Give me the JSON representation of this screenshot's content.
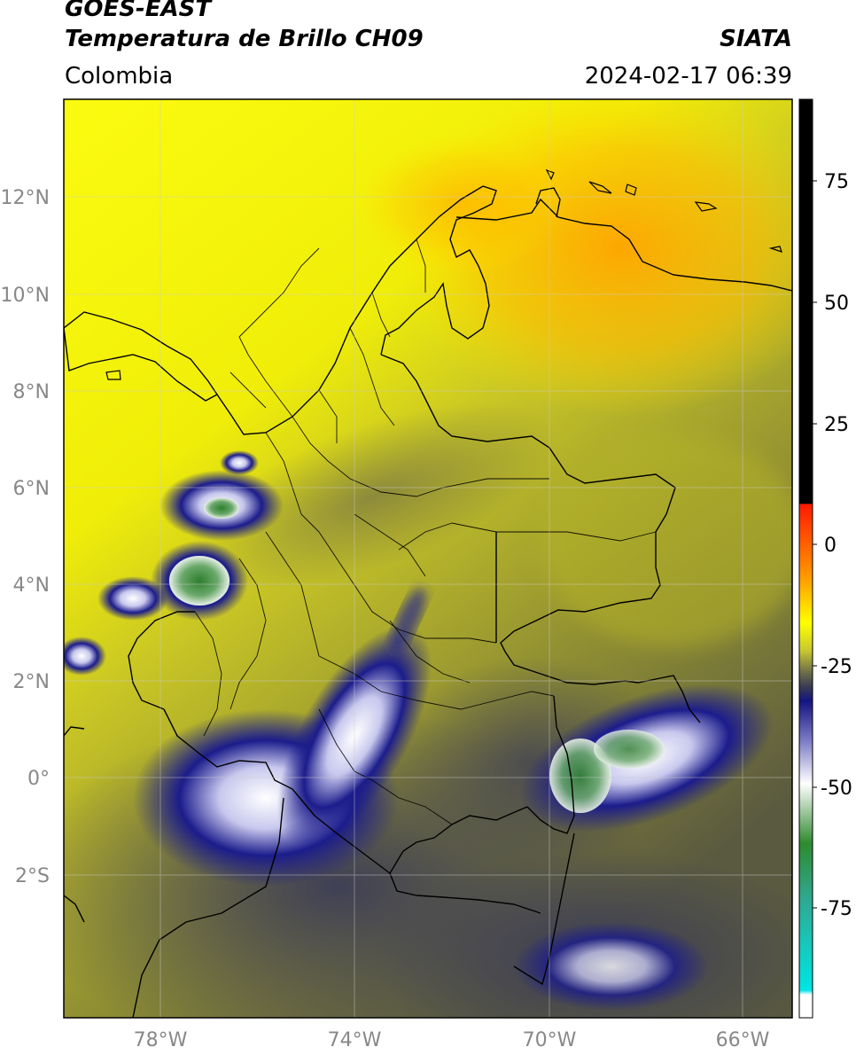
{
  "header": {
    "satellite": "GOES-EAST",
    "product": "Temperatura de Brillo CH09",
    "region": "Colombia",
    "organization": "SIATA",
    "datetime": "2024-02-17 06:39"
  },
  "map": {
    "lon_range": [
      -80,
      -65
    ],
    "lat_range": [
      -5,
      14
    ],
    "lat_ticks": [
      "12°N",
      "10°N",
      "8°N",
      "6°N",
      "4°N",
      "2°N",
      "0°",
      "2°S"
    ],
    "lon_ticks": [
      "78°W",
      "74°W",
      "70°W",
      "66°W"
    ],
    "gridlines": true
  },
  "colorbar": {
    "ticks": [
      "75",
      "50",
      "25",
      "0",
      "-25",
      "-50",
      "-75"
    ],
    "colors": {
      "black": "#000000",
      "red": "#ff1a00",
      "orange": "#ff9900",
      "yellow": "#ffff00",
      "olive": "#a8a82a",
      "dark_gray": "#3a3a55",
      "navy": "#141480",
      "white": "#ffffff",
      "green": "#2e8b2e",
      "cyan": "#00e5e5"
    }
  }
}
